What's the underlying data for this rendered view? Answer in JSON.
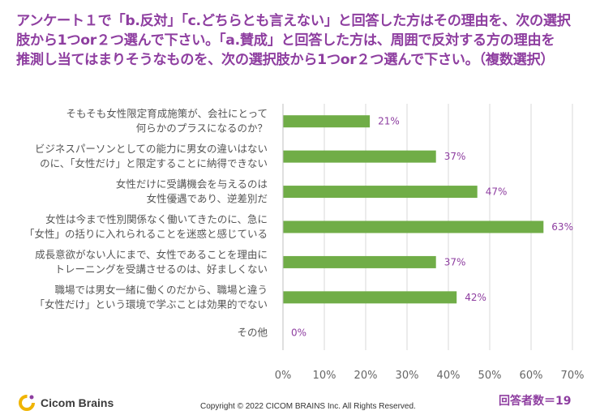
{
  "title": {
    "line1": "アンケート１で「b.反対」「c.どちらとも言えない」と回答した方はその理由を、次の選択",
    "line2": "肢から1つor２つ選んで下さい。「a.賛成」と回答した方は、周囲で反対する方の理由を",
    "line3": "推測し当てはまりそうなものを、次の選択肢から1つor２つ選んで下さい。（複数選択）"
  },
  "chart_data": {
    "type": "bar",
    "orientation": "horizontal",
    "categories": [
      [
        "そもそも女性限定育成施策が、会社にとって",
        "何らかのプラスになるのか？"
      ],
      [
        "ビジネスパーソンとしての能力に男女の違いはない",
        "のに、「女性だけ」と限定することに納得できない"
      ],
      [
        "女性だけに受講機会を与えるのは",
        "女性優遇であり、逆差別だ"
      ],
      [
        "女性は今まで性別関係なく働いてきたのに、急に",
        "「女性」の括りに入れられることを迷惑と感じている"
      ],
      [
        "成長意欲がない人にまで、女性であることを理由に",
        "トレーニングを受講させるのは、好ましくない"
      ],
      [
        "職場では男女一緒に働くのだから、職場と違う",
        "「女性だけ」という環境で学ぶことは効果的でない"
      ],
      [
        "その他"
      ]
    ],
    "values": [
      21,
      37,
      47,
      63,
      37,
      42,
      0
    ],
    "data_labels": [
      "21%",
      "37%",
      "47%",
      "63%",
      "37%",
      "42%",
      "0%"
    ],
    "xlim": [
      0,
      70
    ],
    "xticks": [
      "0%",
      "10%",
      "20%",
      "30%",
      "40%",
      "50%",
      "60%",
      "70%"
    ],
    "grid": true,
    "bar_color": "#70ad47",
    "label_color": "#8e3ea0"
  },
  "footer": {
    "logo_text": "Cicom Brains",
    "copyright": "Copyright © 2022 CICOM BRAINS Inc. All Rights Reserved.",
    "respondents": "回答者数＝19"
  },
  "colors": {
    "accent": "#8e3ea0",
    "bar": "#70ad47",
    "logo_ring": "#f0b400"
  }
}
